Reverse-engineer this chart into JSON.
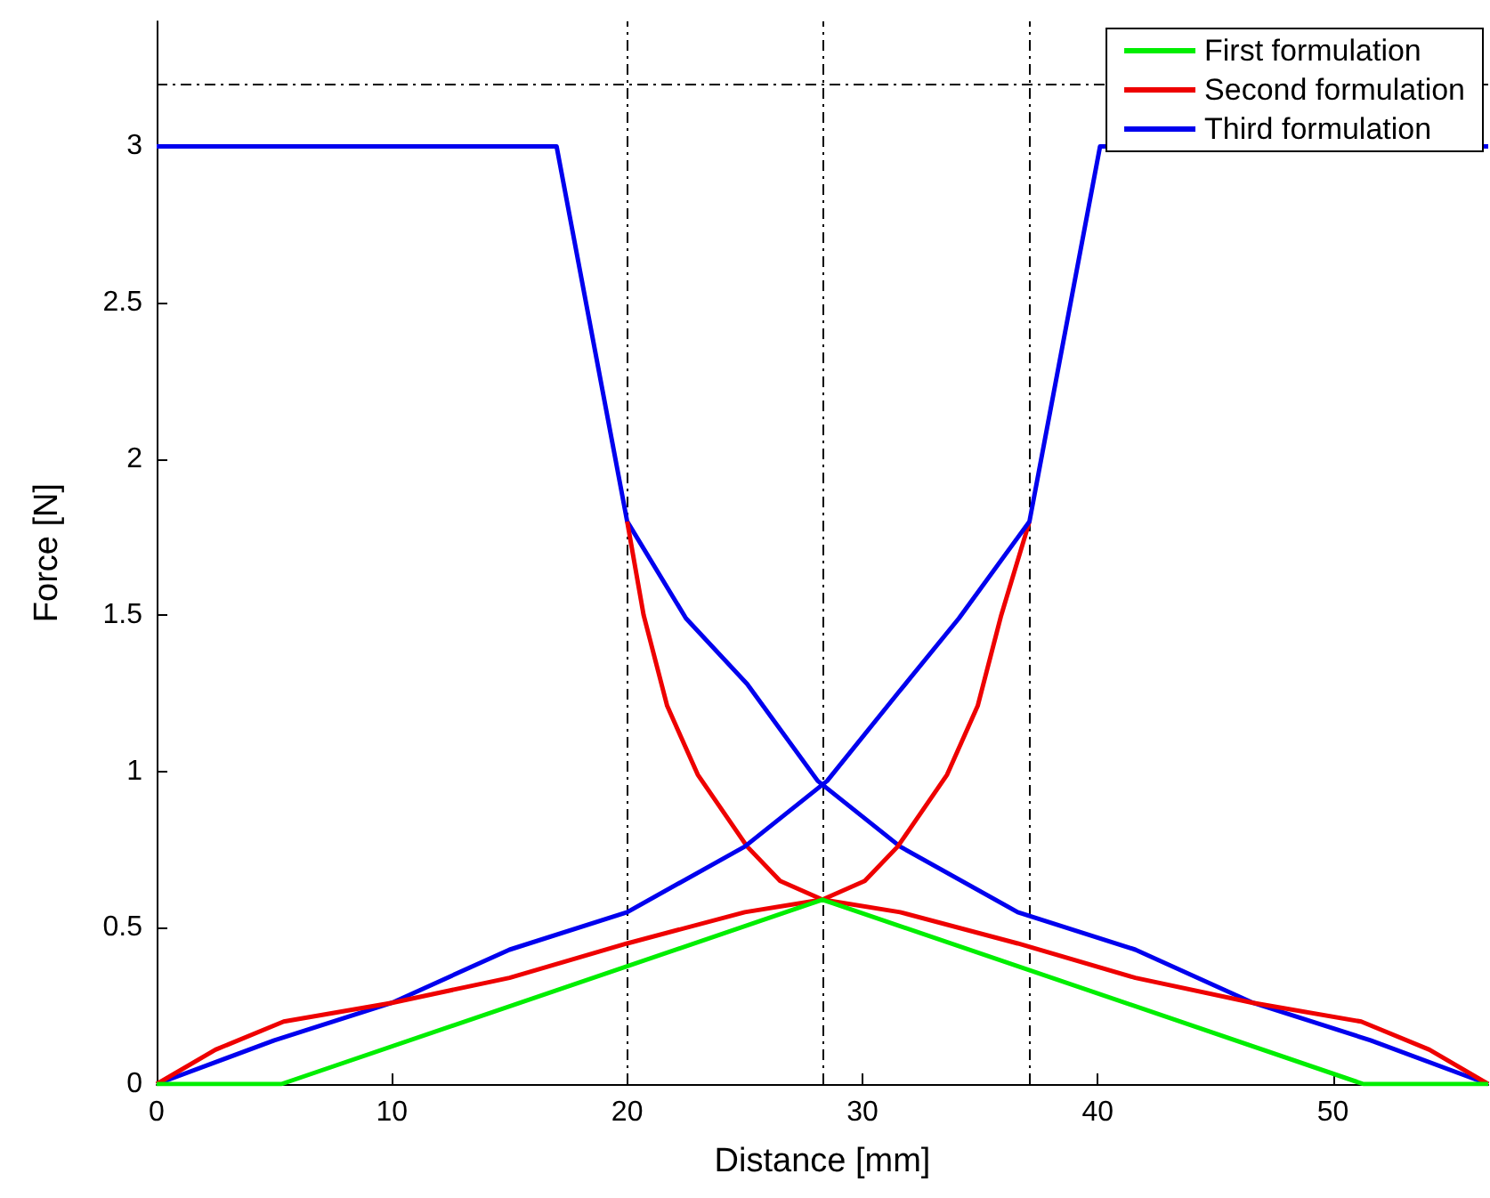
{
  "chart_data": {
    "type": "line",
    "xlabel": "Distance [mm]",
    "ylabel": "Force [N]",
    "xlim": [
      0,
      56.6
    ],
    "ylim": [
      0,
      3.4
    ],
    "xticks": [
      0,
      10,
      20,
      30,
      40,
      50
    ],
    "yticks": [
      0,
      0.5,
      1,
      1.5,
      2,
      2.5,
      3
    ],
    "legend": "top right",
    "series": [
      {
        "name": "First formulation",
        "color": "#00ee00",
        "x": [
          0,
          5.3,
          28.3,
          51.3,
          56.6
        ],
        "values": [
          0,
          0,
          0.59,
          0,
          0
        ]
      },
      {
        "name": "Second formulation",
        "color": "#ee0000",
        "x": [
          0,
          2.5,
          5.4,
          10,
          15,
          20,
          25,
          28.3,
          31.6,
          36.6,
          41.6,
          46.6,
          51.2,
          54.1,
          56.6
        ],
        "values": [
          0,
          0.11,
          0.2,
          0.26,
          0.34,
          0.45,
          0.55,
          0.59,
          0.55,
          0.45,
          0.34,
          0.26,
          0.2,
          0.11,
          0
        ]
      },
      {
        "name": "Third formulation",
        "color": "#0000ee",
        "x": [
          0,
          5,
          10,
          15,
          20,
          25,
          28.5,
          31.5,
          34.1,
          37.1,
          40.1,
          56.6
        ],
        "values": [
          0,
          0.14,
          0.26,
          0.43,
          0.55,
          0.76,
          0.97,
          1.25,
          1.49,
          1.8,
          3,
          3
        ]
      },
      {
        "color": "#ee0000",
        "x": [
          20,
          20.7,
          21.7,
          23,
          25.1,
          26.5,
          28.3,
          30.1,
          31.5,
          33.6,
          34.9,
          35.9,
          37.1
        ],
        "values": [
          1.8,
          1.5,
          1.21,
          0.99,
          0.76,
          0.65,
          0.59,
          0.65,
          0.76,
          0.99,
          1.21,
          1.5,
          1.8
        ]
      },
      {
        "color": "#0000ee",
        "x": [
          0,
          17,
          20,
          22.5,
          25.1,
          28.1,
          31.6,
          36.6,
          41.6,
          46.6,
          51.6,
          56.6
        ],
        "values": [
          3,
          3,
          1.8,
          1.49,
          1.28,
          0.97,
          0.76,
          0.55,
          0.43,
          0.26,
          0.14,
          0
        ]
      }
    ],
    "ref_lines": [
      {
        "axis": "y",
        "value": 3.2,
        "label": null,
        "color": "#000000",
        "line_style": "dashed"
      },
      {
        "axis": "x",
        "value": 20,
        "label": null,
        "color": "#000000",
        "line_style": "dashed"
      },
      {
        "axis": "x",
        "value": 28.3,
        "label": null,
        "color": "#000000",
        "line_style": "dashed"
      },
      {
        "axis": "x",
        "value": 37.1,
        "label": null,
        "color": "#000000",
        "line_style": "dashed"
      }
    ]
  }
}
